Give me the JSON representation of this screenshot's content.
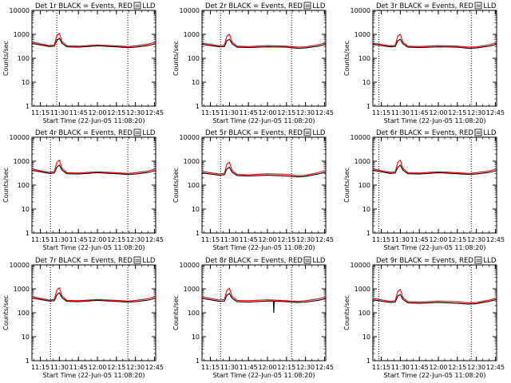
{
  "figure": {
    "background": "#ffffff",
    "axis_color": "#000000",
    "legend_marker": "small-square-box"
  },
  "chart_data": [
    {
      "type": "line",
      "title": "Det 1r BLACK = Events, RED = LLD",
      "xlabel": "Start Time (22-Jun-05 11:08:20)",
      "ylabel": "Counts/sec",
      "xticks": [
        "11:15",
        "11:30",
        "11:45",
        "12:00",
        "12:15",
        "12:30",
        "12:45"
      ],
      "yticks": [
        "1",
        "10",
        "100",
        "1000",
        "10000"
      ],
      "ylim": [
        1,
        10000
      ],
      "yscale": "log",
      "xlim": [
        "11:08:20",
        "12:46"
      ],
      "markers": [
        "11:28",
        "12:24"
      ],
      "x": [
        "11:08",
        "11:15",
        "11:22",
        "11:26",
        "11:28",
        "11:30",
        "11:32",
        "11:36",
        "11:45",
        "12:00",
        "12:15",
        "12:24",
        "12:30",
        "12:40",
        "12:46"
      ],
      "series": [
        {
          "name": "BLACK = Events",
          "color": "#000000",
          "values": [
            420,
            360,
            310,
            320,
            560,
            680,
            420,
            300,
            290,
            330,
            300,
            280,
            290,
            340,
            400
          ]
        },
        {
          "name": "RED = LLD",
          "color": "#ff0000",
          "values": [
            480,
            400,
            340,
            360,
            900,
            1100,
            500,
            330,
            320,
            360,
            330,
            310,
            330,
            390,
            480
          ]
        }
      ]
    },
    {
      "type": "line",
      "title": "Det 2r BLACK = Events, RED = LLD",
      "xlabel": "Start Time (22-Jun-05 11:08:20)",
      "ylabel": "Counts/sec",
      "xticks": [
        "11:15",
        "11:30",
        "11:45",
        "12:00",
        "12:15",
        "12:30",
        "12:45"
      ],
      "yticks": [
        "1",
        "10",
        "100",
        "1000",
        "10000"
      ],
      "ylim": [
        1,
        10000
      ],
      "yscale": "log",
      "xlim": [
        "11:08:20",
        "12:46"
      ],
      "markers": [
        "11:23",
        "12:19"
      ],
      "x": [
        "11:08",
        "11:15",
        "11:22",
        "11:26",
        "11:28",
        "11:30",
        "11:32",
        "11:36",
        "11:45",
        "12:00",
        "12:15",
        "12:24",
        "12:30",
        "12:40",
        "12:46"
      ],
      "series": [
        {
          "name": "BLACK = Events",
          "color": "#000000",
          "values": [
            380,
            340,
            300,
            310,
            540,
            620,
            400,
            290,
            280,
            300,
            290,
            260,
            270,
            320,
            380
          ]
        },
        {
          "name": "RED = LLD",
          "color": "#ff0000",
          "values": [
            430,
            380,
            330,
            350,
            850,
            1000,
            470,
            320,
            310,
            340,
            320,
            290,
            300,
            370,
            450
          ]
        }
      ]
    },
    {
      "type": "line",
      "title": "Det 3r BLACK = Events, RED = LLD",
      "xlabel": "Start Time (22-Jun-05 11:08:20)",
      "ylabel": "Counts/sec",
      "xticks": [
        "11:15",
        "11:30",
        "11:45",
        "12:00",
        "12:15",
        "12:30",
        "12:45"
      ],
      "yticks": [
        "1",
        "10",
        "100",
        "1000",
        "10000"
      ],
      "ylim": [
        1,
        10000
      ],
      "yscale": "log",
      "xlim": [
        "11:08:20",
        "12:46"
      ],
      "markers": [
        "11:13",
        "12:26"
      ],
      "x": [
        "11:08",
        "11:15",
        "11:22",
        "11:26",
        "11:28",
        "11:30",
        "11:32",
        "11:36",
        "11:45",
        "12:00",
        "12:15",
        "12:24",
        "12:30",
        "12:40",
        "12:46"
      ],
      "series": [
        {
          "name": "BLACK = Events",
          "color": "#000000",
          "values": [
            380,
            340,
            300,
            310,
            540,
            620,
            400,
            290,
            280,
            300,
            290,
            260,
            270,
            320,
            380
          ]
        },
        {
          "name": "RED = LLD",
          "color": "#ff0000",
          "values": [
            430,
            380,
            330,
            350,
            850,
            1000,
            470,
            320,
            310,
            340,
            320,
            290,
            300,
            370,
            450
          ]
        }
      ]
    },
    {
      "type": "line",
      "title": "Det 4r BLACK = Events, RED = LLD",
      "xlabel": "Start Time (22-Jun-05 11:08:20)",
      "ylabel": "Counts/sec",
      "xticks": [
        "11:15",
        "11:30",
        "11:45",
        "12:00",
        "12:15",
        "12:30",
        "12:45"
      ],
      "yticks": [
        "1",
        "10",
        "100",
        "1000",
        "10000"
      ],
      "ylim": [
        1,
        10000
      ],
      "yscale": "log",
      "xlim": [
        "11:08:20",
        "12:46"
      ],
      "markers": [
        "11:23",
        "12:24"
      ],
      "x": [
        "11:08",
        "11:15",
        "11:22",
        "11:26",
        "11:28",
        "11:30",
        "11:32",
        "11:36",
        "11:45",
        "12:00",
        "12:15",
        "12:24",
        "12:30",
        "12:40",
        "12:46"
      ],
      "series": [
        {
          "name": "BLACK = Events",
          "color": "#000000",
          "values": [
            420,
            360,
            310,
            320,
            560,
            680,
            420,
            300,
            290,
            330,
            300,
            280,
            290,
            340,
            400
          ]
        },
        {
          "name": "RED = LLD",
          "color": "#ff0000",
          "values": [
            480,
            400,
            340,
            360,
            900,
            1100,
            500,
            330,
            320,
            360,
            330,
            310,
            330,
            390,
            480
          ]
        }
      ]
    },
    {
      "type": "line",
      "title": "Det 5r BLACK = Events, RED = LLD",
      "xlabel": "Start Time (22-Jun-05 11:08:20)",
      "ylabel": "Counts/sec",
      "xticks": [
        "11:15",
        "11:30",
        "11:45",
        "12:00",
        "12:15",
        "12:30",
        "12:45"
      ],
      "yticks": [
        "1",
        "10",
        "100",
        "1000",
        "10000"
      ],
      "ylim": [
        1,
        10000
      ],
      "yscale": "log",
      "xlim": [
        "11:08:20",
        "12:46"
      ],
      "markers": [
        "11:23",
        "12:19"
      ],
      "x": [
        "11:08",
        "11:15",
        "11:22",
        "11:26",
        "11:28",
        "11:30",
        "11:32",
        "11:36",
        "11:45",
        "12:00",
        "12:15",
        "12:24",
        "12:30",
        "12:40",
        "12:46"
      ],
      "series": [
        {
          "name": "BLACK = Events",
          "color": "#000000",
          "values": [
            320,
            290,
            260,
            270,
            480,
            560,
            350,
            250,
            240,
            260,
            240,
            220,
            230,
            290,
            350
          ]
        },
        {
          "name": "RED = LLD",
          "color": "#ff0000",
          "values": [
            370,
            330,
            290,
            310,
            760,
            900,
            410,
            280,
            270,
            300,
            280,
            250,
            260,
            330,
            410
          ]
        }
      ]
    },
    {
      "type": "line",
      "title": "Det 6r BLACK = Events, RED = LLD",
      "xlabel": "Start Time (22-Jun-05 11:08:20)",
      "ylabel": "Counts/sec",
      "xticks": [
        "11:15",
        "11:30",
        "11:45",
        "12:00",
        "12:15",
        "12:30",
        "12:45"
      ],
      "yticks": [
        "1",
        "10",
        "100",
        "1000",
        "10000"
      ],
      "ylim": [
        1,
        10000
      ],
      "yscale": "log",
      "xlim": [
        "11:08:20",
        "12:46"
      ],
      "markers": [
        "11:13",
        "12:26"
      ],
      "x": [
        "11:08",
        "11:15",
        "11:22",
        "11:26",
        "11:28",
        "11:30",
        "11:32",
        "11:36",
        "11:45",
        "12:00",
        "12:15",
        "12:24",
        "12:30",
        "12:40",
        "12:46"
      ],
      "series": [
        {
          "name": "BLACK = Events",
          "color": "#000000",
          "values": [
            420,
            360,
            310,
            320,
            560,
            680,
            420,
            300,
            290,
            330,
            300,
            280,
            290,
            340,
            400
          ]
        },
        {
          "name": "RED = LLD",
          "color": "#ff0000",
          "values": [
            480,
            400,
            340,
            360,
            900,
            1100,
            500,
            330,
            320,
            360,
            330,
            310,
            330,
            390,
            480
          ]
        }
      ]
    },
    {
      "type": "line",
      "title": "Det 7r BLACK = Events, RED = LLD",
      "xlabel": "Start Time (22-Jun-05 11:08:20)",
      "ylabel": "Counts/sec",
      "xticks": [
        "11:15",
        "11:30",
        "11:45",
        "12:00",
        "12:15",
        "12:30",
        "12:45"
      ],
      "yticks": [
        "1",
        "10",
        "100",
        "1000",
        "10000"
      ],
      "ylim": [
        1,
        10000
      ],
      "yscale": "log",
      "xlim": [
        "11:08:20",
        "12:46"
      ],
      "markers": [
        "11:23",
        "12:24"
      ],
      "x": [
        "11:08",
        "11:15",
        "11:22",
        "11:26",
        "11:28",
        "11:30",
        "11:32",
        "11:36",
        "11:45",
        "12:00",
        "12:15",
        "12:24",
        "12:30",
        "12:40",
        "12:46"
      ],
      "series": [
        {
          "name": "BLACK = Events",
          "color": "#000000",
          "values": [
            420,
            360,
            310,
            320,
            560,
            680,
            420,
            300,
            290,
            330,
            300,
            280,
            290,
            340,
            400
          ]
        },
        {
          "name": "RED = LLD",
          "color": "#ff0000",
          "values": [
            480,
            400,
            340,
            360,
            900,
            1100,
            500,
            330,
            320,
            360,
            330,
            310,
            330,
            390,
            480
          ]
        }
      ]
    },
    {
      "type": "line",
      "title": "Det 8r BLACK = Events, RED = LLD",
      "xlabel": "Start Time (22-Jun-05 11:08:20)",
      "ylabel": "Counts/sec",
      "xticks": [
        "11:15",
        "11:30",
        "11:45",
        "12:00",
        "12:15",
        "12:30",
        "12:45"
      ],
      "yticks": [
        "1",
        "10",
        "100",
        "1000",
        "10000"
      ],
      "ylim": [
        1,
        10000
      ],
      "yscale": "log",
      "xlim": [
        "11:08:20",
        "12:46"
      ],
      "markers": [
        "11:23",
        "12:19"
      ],
      "dip": {
        "x": "12:05",
        "value": 100
      },
      "x": [
        "11:08",
        "11:15",
        "11:22",
        "11:26",
        "11:28",
        "11:30",
        "11:32",
        "11:36",
        "11:45",
        "12:00",
        "12:15",
        "12:24",
        "12:30",
        "12:40",
        "12:46"
      ],
      "series": [
        {
          "name": "BLACK = Events",
          "color": "#000000",
          "values": [
            400,
            350,
            300,
            310,
            540,
            640,
            400,
            290,
            280,
            310,
            290,
            270,
            280,
            330,
            390
          ]
        },
        {
          "name": "RED = LLD",
          "color": "#ff0000",
          "values": [
            460,
            400,
            340,
            360,
            880,
            1050,
            480,
            330,
            320,
            350,
            320,
            300,
            320,
            380,
            460
          ]
        }
      ]
    },
    {
      "type": "line",
      "title": "Det 9r BLACK = Events, RED = LLD",
      "xlabel": "Start Time (22-Jun-05 11:08:20)",
      "ylabel": "Counts/sec",
      "xticks": [
        "11:15",
        "11:30",
        "11:45",
        "12:00",
        "12:15",
        "12:30",
        "12:45"
      ],
      "yticks": [
        "1",
        "10",
        "100",
        "1000",
        "10000"
      ],
      "ylim": [
        1,
        10000
      ],
      "yscale": "log",
      "xlim": [
        "11:08:20",
        "12:46"
      ],
      "markers": [
        "11:13",
        "12:26"
      ],
      "x": [
        "11:08",
        "11:15",
        "11:22",
        "11:26",
        "11:28",
        "11:30",
        "11:32",
        "11:36",
        "11:45",
        "12:00",
        "12:15",
        "12:24",
        "12:30",
        "12:40",
        "12:46"
      ],
      "series": [
        {
          "name": "BLACK = Events",
          "color": "#000000",
          "values": [
            350,
            310,
            270,
            280,
            500,
            580,
            360,
            260,
            250,
            270,
            250,
            230,
            240,
            300,
            360
          ]
        },
        {
          "name": "RED = LLD",
          "color": "#ff0000",
          "values": [
            400,
            350,
            300,
            320,
            780,
            940,
            430,
            290,
            280,
            310,
            290,
            260,
            270,
            340,
            420
          ]
        }
      ]
    }
  ]
}
